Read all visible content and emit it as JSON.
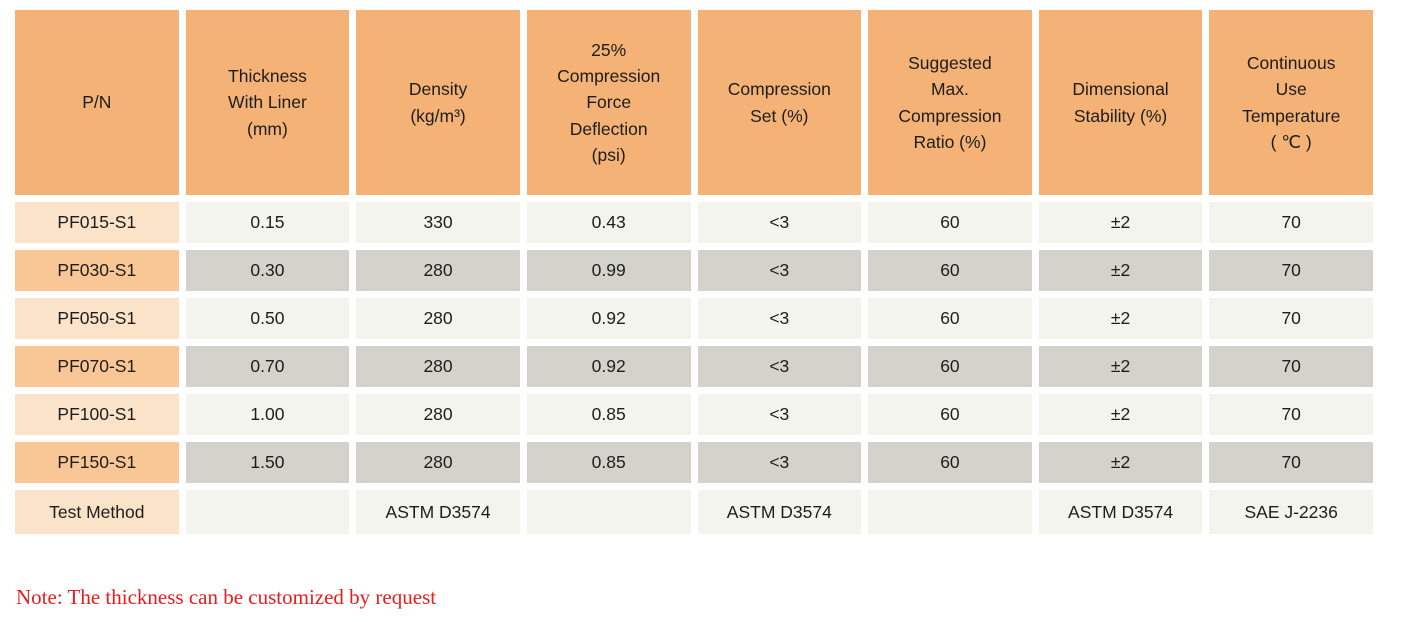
{
  "table": {
    "columns": [
      {
        "label": "P/N"
      },
      {
        "label": "Thickness\nWith Liner\n(mm)"
      },
      {
        "label": "Density\n(kg/m³)"
      },
      {
        "label": "25%\nCompression\nForce\nDeflection\n(psi)"
      },
      {
        "label": "Compression\nSet (%)"
      },
      {
        "label": "Suggested\nMax.\nCompression\nRatio (%)"
      },
      {
        "label": "Dimensional\nStability (%)"
      },
      {
        "label": "Continuous\nUse\nTemperature\n( ℃ )"
      }
    ],
    "rows": [
      {
        "pn": "PF015-S1",
        "cells": [
          "0.15",
          "330",
          "0.43",
          "<3",
          "60",
          "±2",
          "70"
        ]
      },
      {
        "pn": "PF030-S1",
        "cells": [
          "0.30",
          "280",
          "0.99",
          "<3",
          "60",
          "±2",
          "70"
        ]
      },
      {
        "pn": "PF050-S1",
        "cells": [
          "0.50",
          "280",
          "0.92",
          "<3",
          "60",
          "±2",
          "70"
        ]
      },
      {
        "pn": "PF070-S1",
        "cells": [
          "0.70",
          "280",
          "0.92",
          "<3",
          "60",
          "±2",
          "70"
        ]
      },
      {
        "pn": "PF100-S1",
        "cells": [
          "1.00",
          "280",
          "0.85",
          "<3",
          "60",
          "±2",
          "70"
        ]
      },
      {
        "pn": "PF150-S1",
        "cells": [
          "1.50",
          "280",
          "0.85",
          "<3",
          "60",
          "±2",
          "70"
        ]
      }
    ],
    "test_method_row": {
      "pn": "Test Method",
      "cells": [
        "",
        "ASTM D3574",
        "",
        "ASTM D3574",
        "",
        "ASTM D3574",
        "SAE J-2236"
      ]
    }
  },
  "note": "Note: The thickness can be customized by request",
  "colors": {
    "header_bg": "#F4B277",
    "pn_row_light": "#FBE3CA",
    "pn_row_dark": "#F8C795",
    "cell_light": "#F4F4EF",
    "cell_dark": "#D3D3CC",
    "note_text": "#E71D1D"
  }
}
